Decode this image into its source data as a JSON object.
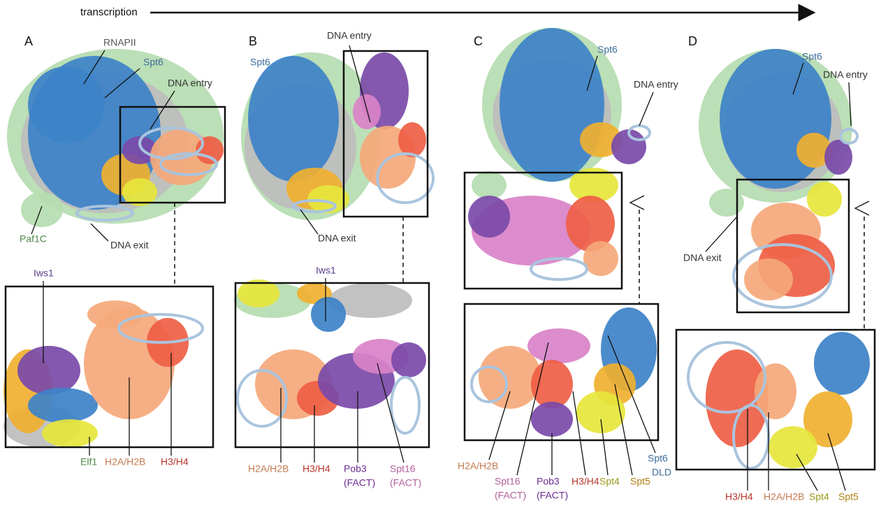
{
  "header": {
    "label": "transcription"
  },
  "panels": [
    {
      "letter": "A",
      "labels": [
        [
          "RNAPII"
        ],
        [
          "Spt6"
        ],
        [
          "DNA entry"
        ],
        [
          "Paf1C"
        ],
        [
          "DNA exit"
        ]
      ],
      "inset_labels": [
        [
          "Iws1"
        ],
        [
          "Elf1"
        ],
        [
          "H2A/H2B"
        ],
        [
          "H3/H4"
        ]
      ]
    },
    {
      "letter": "B",
      "labels": [
        [
          "DNA entry"
        ],
        [
          "Spt6"
        ],
        [
          "DNA exit"
        ]
      ],
      "inset_labels": [
        [
          "Iws1"
        ],
        [
          "H2A/H2B"
        ],
        [
          "H3/H4"
        ],
        [
          "Pob3",
          "(FACT)"
        ],
        [
          "Spt16",
          "(FACT)"
        ]
      ]
    },
    {
      "letter": "C",
      "labels": [
        [
          "Spt6"
        ],
        [
          "DNA entry"
        ]
      ],
      "inset_labels": [
        [
          "H2A/H2B"
        ],
        [
          "Spt16",
          "(FACT)"
        ],
        [
          "Pob3",
          "(FACT)"
        ],
        [
          "H3/H4"
        ],
        [
          "Spt4"
        ],
        [
          "Spt5"
        ],
        [
          "Spt6",
          "DLD"
        ]
      ]
    },
    {
      "letter": "D",
      "labels": [
        [
          "Spt6"
        ],
        [
          "DNA entry"
        ],
        [
          "DNA exit"
        ]
      ],
      "inset_labels": [
        [
          "H3/H4"
        ],
        [
          "H2A/H2B"
        ],
        [
          "Spt4"
        ],
        [
          "Spt5"
        ]
      ]
    }
  ]
}
